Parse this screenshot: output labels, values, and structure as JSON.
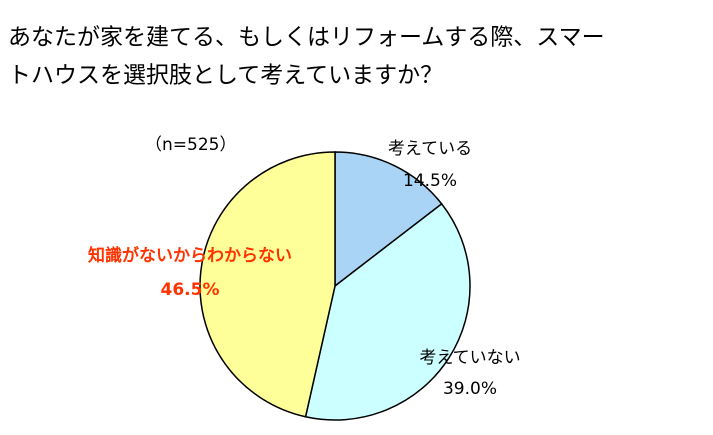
{
  "chart_data": {
    "type": "pie",
    "title": [
      "あなたが家を建てる、もしくはリフォームする際、スマー",
      "トハウスを選択肢として考えていますか？"
    ],
    "subtitle": "（n=525）",
    "categories": [
      "考えている",
      "考えていない",
      "知識がないからわからない"
    ],
    "values": [
      14.5,
      39,
      46.5
    ],
    "value_labels": [
      "14.5%",
      "39.0%",
      "46.5%"
    ],
    "colors": [
      "#a9d4f5",
      "#ccffff",
      "#ffff99"
    ],
    "label_colors": [
      "#000000",
      "#000000",
      "#ff3300"
    ]
  }
}
